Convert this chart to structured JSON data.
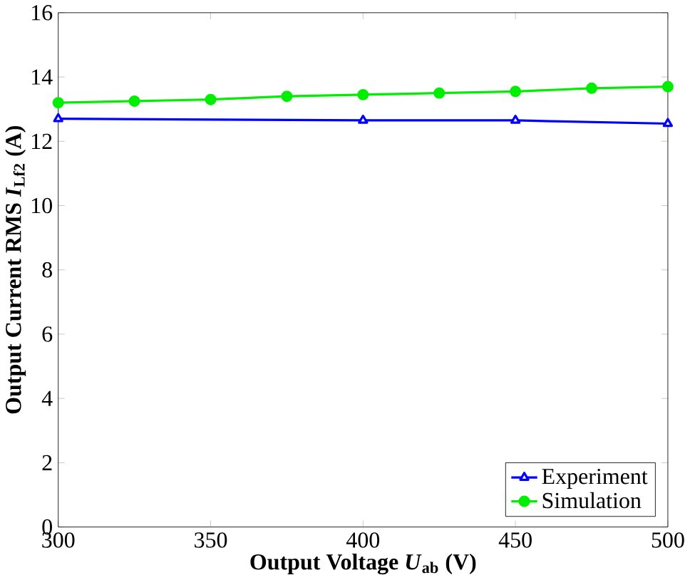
{
  "chart_data": {
    "type": "line",
    "xlabel": "Output Voltage *U*$_{ab}$ (V)",
    "ylabel": "Output Current RMS *I*$_{Lf2}$ (A)",
    "xlim": [
      300,
      500
    ],
    "xticks": [
      300,
      350,
      400,
      450,
      500
    ],
    "ylim": [
      0,
      16
    ],
    "yticks": [
      0,
      2,
      4,
      6,
      8,
      10,
      12,
      14,
      16
    ],
    "legend": "bottom right",
    "line_style": "solid",
    "grid": false,
    "series": [
      {
        "name": "Experiment",
        "color": "#0000ff",
        "marker": "triangle",
        "x": [
          300,
          400,
          450,
          500
        ],
        "values": [
          12.7,
          12.65,
          12.65,
          12.55
        ]
      },
      {
        "name": "Simulation",
        "color": "#00ee00",
        "marker": "circle",
        "x": [
          300,
          325,
          350,
          375,
          400,
          425,
          450,
          475,
          500
        ],
        "values": [
          13.2,
          13.25,
          13.3,
          13.4,
          13.45,
          13.5,
          13.55,
          13.65,
          13.7
        ]
      }
    ]
  }
}
